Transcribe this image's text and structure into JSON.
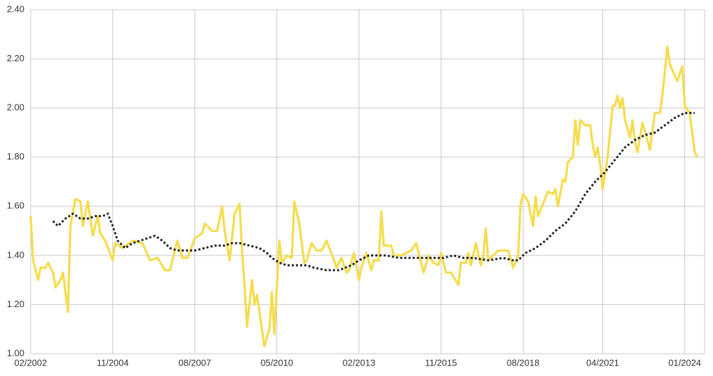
{
  "chart_data": {
    "type": "line",
    "xlim": [
      "2002-02",
      "2024-09"
    ],
    "xticks": [
      {
        "value": "2002-02",
        "label": "02/2002"
      },
      {
        "value": "2004-11",
        "label": "11/2004"
      },
      {
        "value": "2007-08",
        "label": "08/2007"
      },
      {
        "value": "2010-05",
        "label": "05/2010"
      },
      {
        "value": "2013-02",
        "label": "02/2013"
      },
      {
        "value": "2015-11",
        "label": "11/2015"
      },
      {
        "value": "2018-08",
        "label": "08/2018"
      },
      {
        "value": "2021-04",
        "label": "04/2021"
      },
      {
        "value": "2024-01",
        "label": "01/2024"
      }
    ],
    "ylim": [
      1.0,
      2.4
    ],
    "yticks": [
      {
        "value": 1.0,
        "label": "1.00"
      },
      {
        "value": 1.2,
        "label": "1.20"
      },
      {
        "value": 1.4,
        "label": "1.40"
      },
      {
        "value": 1.6,
        "label": "1.60"
      },
      {
        "value": 1.8,
        "label": "1.80"
      },
      {
        "value": 2.0,
        "label": "2.00"
      },
      {
        "value": 2.2,
        "label": "2.20"
      },
      {
        "value": 2.4,
        "label": "2.40"
      }
    ],
    "grid": true,
    "series": [
      {
        "color": "#f5dc4c",
        "line_style": "solid",
        "x": [
          "2002-02",
          "2002-03",
          "2002-05",
          "2002-06",
          "2002-08",
          "2002-09",
          "2002-11",
          "2002-12",
          "2003-02",
          "2003-03",
          "2003-05",
          "2003-06",
          "2003-08",
          "2003-10",
          "2003-11",
          "2004-01",
          "2004-03",
          "2004-05",
          "2004-06",
          "2004-08",
          "2004-11",
          "2004-12",
          "2005-03",
          "2005-07",
          "2005-11",
          "2006-02",
          "2006-05",
          "2006-08",
          "2006-10",
          "2007-01",
          "2007-03",
          "2007-05",
          "2007-08",
          "2007-11",
          "2007-12",
          "2008-03",
          "2008-05",
          "2008-07",
          "2008-08",
          "2008-10",
          "2008-12",
          "2009-02",
          "2009-03",
          "2009-04",
          "2009-05",
          "2009-07",
          "2009-08",
          "2009-09",
          "2009-12",
          "2010-02",
          "2010-03",
          "2010-04",
          "2010-06",
          "2010-07",
          "2010-09",
          "2010-11",
          "2010-12",
          "2011-02",
          "2011-04",
          "2011-05",
          "2011-07",
          "2011-09",
          "2011-11",
          "2012-01",
          "2012-04",
          "2012-05",
          "2012-07",
          "2012-09",
          "2012-10",
          "2012-12",
          "2013-02",
          "2013-03",
          "2013-05",
          "2013-07",
          "2013-08",
          "2013-10",
          "2013-11",
          "2013-12",
          "2014-03",
          "2014-04",
          "2014-07",
          "2014-11",
          "2015-01",
          "2015-04",
          "2015-06",
          "2015-08",
          "2015-10",
          "2015-11",
          "2016-01",
          "2016-03",
          "2016-06",
          "2016-07",
          "2016-09",
          "2016-10",
          "2016-11",
          "2017-01",
          "2017-03",
          "2017-04",
          "2017-05",
          "2017-06",
          "2017-08",
          "2017-10",
          "2018-02",
          "2018-04",
          "2018-06",
          "2018-07",
          "2018-08",
          "2018-10",
          "2018-12",
          "2019-01",
          "2019-02",
          "2019-04",
          "2019-06",
          "2019-08",
          "2019-09",
          "2019-10",
          "2019-12",
          "2020-01",
          "2020-02",
          "2020-04",
          "2020-05",
          "2020-06",
          "2020-07",
          "2020-09",
          "2020-11",
          "2020-12",
          "2021-01",
          "2021-02",
          "2021-03",
          "2021-04",
          "2021-06",
          "2021-08",
          "2021-09",
          "2021-10",
          "2021-11",
          "2021-12",
          "2022-01",
          "2022-03",
          "2022-04",
          "2022-05",
          "2022-06",
          "2022-08",
          "2022-10",
          "2022-11",
          "2023-01",
          "2023-03",
          "2023-04",
          "2023-05",
          "2023-06",
          "2023-07",
          "2023-09",
          "2023-10",
          "2023-12",
          "2024-01",
          "2024-03",
          "2024-04",
          "2024-05",
          "2024-06"
        ],
        "values": [
          1.56,
          1.38,
          1.3,
          1.35,
          1.35,
          1.37,
          1.33,
          1.27,
          1.3,
          1.33,
          1.17,
          1.52,
          1.63,
          1.62,
          1.52,
          1.62,
          1.48,
          1.56,
          1.49,
          1.46,
          1.38,
          1.45,
          1.43,
          1.46,
          1.45,
          1.38,
          1.39,
          1.34,
          1.34,
          1.46,
          1.39,
          1.39,
          1.47,
          1.49,
          1.53,
          1.5,
          1.5,
          1.6,
          1.5,
          1.38,
          1.57,
          1.61,
          1.42,
          1.28,
          1.11,
          1.3,
          1.2,
          1.24,
          1.03,
          1.1,
          1.25,
          1.08,
          1.46,
          1.37,
          1.4,
          1.39,
          1.62,
          1.53,
          1.37,
          1.38,
          1.45,
          1.42,
          1.42,
          1.46,
          1.38,
          1.35,
          1.39,
          1.33,
          1.34,
          1.41,
          1.3,
          1.35,
          1.41,
          1.34,
          1.38,
          1.38,
          1.58,
          1.44,
          1.44,
          1.4,
          1.4,
          1.42,
          1.45,
          1.33,
          1.4,
          1.37,
          1.36,
          1.41,
          1.33,
          1.33,
          1.28,
          1.37,
          1.37,
          1.41,
          1.36,
          1.45,
          1.36,
          1.4,
          1.51,
          1.38,
          1.4,
          1.42,
          1.42,
          1.35,
          1.4,
          1.61,
          1.65,
          1.62,
          1.52,
          1.64,
          1.56,
          1.61,
          1.66,
          1.65,
          1.67,
          1.6,
          1.71,
          1.7,
          1.78,
          1.8,
          1.95,
          1.85,
          1.95,
          1.93,
          1.93,
          1.85,
          1.8,
          1.84,
          1.77,
          1.67,
          1.8,
          2.01,
          2.01,
          2.05,
          2.0,
          2.04,
          1.95,
          1.88,
          1.95,
          1.86,
          1.82,
          1.94,
          1.87,
          1.83,
          1.98,
          1.98,
          2.05,
          2.15,
          2.25,
          2.18,
          2.13,
          2.11,
          2.17,
          2.01,
          1.98,
          1.9,
          1.82,
          1.8
        ]
      },
      {
        "color": "#222222",
        "line_style": "dotted",
        "x": [
          "2002-11",
          "2003-01",
          "2003-04",
          "2003-07",
          "2003-10",
          "2004-01",
          "2004-04",
          "2004-07",
          "2004-09",
          "2004-11",
          "2005-01",
          "2005-04",
          "2005-07",
          "2005-10",
          "2006-01",
          "2006-04",
          "2006-07",
          "2006-10",
          "2007-01",
          "2007-04",
          "2007-08",
          "2007-12",
          "2008-04",
          "2008-08",
          "2008-11",
          "2009-02",
          "2009-06",
          "2009-10",
          "2010-01",
          "2010-03",
          "2010-06",
          "2010-09",
          "2011-01",
          "2011-05",
          "2011-08",
          "2012-01",
          "2012-06",
          "2012-11",
          "2013-02",
          "2013-06",
          "2013-10",
          "2014-01",
          "2014-06",
          "2014-12",
          "2015-06",
          "2015-12",
          "2016-04",
          "2016-08",
          "2016-12",
          "2017-06",
          "2017-12",
          "2018-04",
          "2018-06",
          "2018-09",
          "2019-01",
          "2019-05",
          "2019-09",
          "2020-01",
          "2020-05",
          "2020-09",
          "2021-01",
          "2021-05",
          "2021-09",
          "2022-01",
          "2022-05",
          "2022-09",
          "2023-01",
          "2023-05",
          "2023-09",
          "2024-01",
          "2024-05"
        ],
        "values": [
          1.54,
          1.52,
          1.55,
          1.57,
          1.55,
          1.55,
          1.56,
          1.56,
          1.57,
          1.52,
          1.46,
          1.43,
          1.45,
          1.46,
          1.47,
          1.48,
          1.46,
          1.43,
          1.42,
          1.42,
          1.42,
          1.43,
          1.44,
          1.44,
          1.45,
          1.45,
          1.44,
          1.43,
          1.41,
          1.39,
          1.37,
          1.36,
          1.36,
          1.36,
          1.35,
          1.34,
          1.34,
          1.36,
          1.38,
          1.4,
          1.4,
          1.4,
          1.39,
          1.39,
          1.39,
          1.39,
          1.4,
          1.39,
          1.39,
          1.38,
          1.39,
          1.38,
          1.38,
          1.41,
          1.43,
          1.46,
          1.5,
          1.53,
          1.58,
          1.65,
          1.7,
          1.74,
          1.79,
          1.84,
          1.87,
          1.89,
          1.9,
          1.93,
          1.96,
          1.98,
          1.98
        ]
      }
    ]
  }
}
